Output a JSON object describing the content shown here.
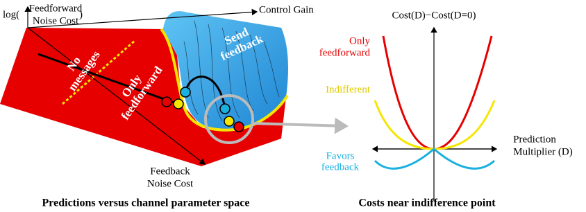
{
  "left_panel": {
    "y_axis": {
      "prefix": "log(",
      "lines": [
        "Feedforward",
        "Noise Cost"
      ],
      "suffix": ")"
    },
    "x_axis": "Control Gain",
    "z_axis": [
      "Feedback",
      "Noise Cost"
    ],
    "regions": {
      "no_messages": [
        "No",
        "messages"
      ],
      "only_feedforward": [
        "Only",
        "feedforward"
      ],
      "send_feedback": [
        "Send",
        "feedback"
      ]
    },
    "caption": "Predictions versus channel parameter space"
  },
  "right_panel": {
    "y_axis": "Cost(D)−Cost(D=0)",
    "x_axis": [
      "Prediction",
      "Multiplier (D)"
    ],
    "curves": {
      "only_feedforward": [
        "Only",
        "feedforward"
      ],
      "indifferent": "Indifferent",
      "favors_feedback": [
        "Favors",
        "feedback"
      ]
    },
    "caption": "Costs near indifference point"
  }
}
